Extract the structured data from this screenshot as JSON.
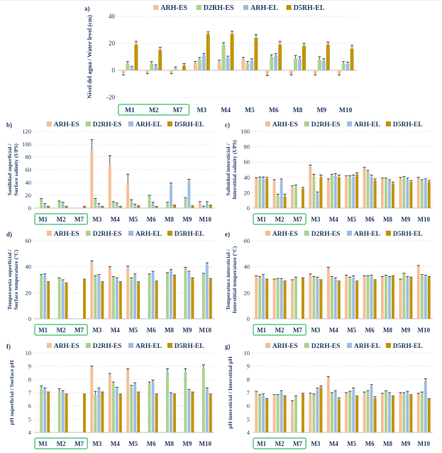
{
  "figure": {
    "background": "#ffffff"
  },
  "colors": {
    "text": "#1F3864",
    "grid": "#D9D9D9",
    "baseline": "#BFBFBF",
    "error_bar": "#3a3a3a",
    "category_box": "#57C785"
  },
  "series_names": [
    "ARH-ES",
    "D2RH-ES",
    "ARH-EL",
    "D5RH-EL"
  ],
  "series_colors": [
    "#F5BD94",
    "#A9D18E",
    "#9EBBE3",
    "#BF9000"
  ],
  "categories": [
    "M1",
    "M2",
    "M7",
    "M3",
    "M4",
    "M5",
    "M6",
    "M8",
    "M9",
    "M10"
  ],
  "boxed_categories": [
    "M1",
    "M2",
    "M7"
  ],
  "chart_data": [
    {
      "id": "a",
      "type": "bar",
      "panel_label": "a)",
      "ylabel_lines": [
        "Nivel del agua / Water level (cm)"
      ],
      "ylim": [
        -20,
        40
      ],
      "yticks": [
        -20,
        0,
        20,
        40
      ],
      "baseline": 0,
      "categories": [
        "M1",
        "M2",
        "M7",
        "M3",
        "M4",
        "M5",
        "M6",
        "M8",
        "M9",
        "M10"
      ],
      "series": [
        {
          "name": "ARH-ES",
          "values": [
            -2,
            -1,
            -1.5,
            5.5,
            6,
            8,
            -2,
            -2,
            -2,
            -2
          ],
          "errors": [
            1.5,
            1.5,
            1,
            1,
            1.5,
            1.5,
            2,
            1.5,
            1.5,
            1.5
          ]
        },
        {
          "name": "D2RH-ES",
          "values": [
            5,
            5,
            1.5,
            8,
            19,
            5,
            10,
            9,
            8,
            5
          ],
          "errors": [
            1.5,
            1.5,
            1,
            1.5,
            1.5,
            1.5,
            1.5,
            2,
            2,
            1.5
          ]
        },
        {
          "name": "ARH-EL",
          "values": [
            2,
            3,
            null,
            11,
            9,
            7,
            11,
            8,
            7,
            5
          ],
          "errors": [
            1,
            1,
            0,
            1.5,
            1.5,
            1.5,
            1.5,
            2,
            1.5,
            1
          ]
        },
        {
          "name": "D5RH-EL",
          "values": [
            19,
            15,
            3.5,
            27,
            27,
            24,
            19,
            18,
            19,
            16
          ],
          "errors": [
            2.5,
            2,
            1.5,
            1.5,
            2,
            2.5,
            2.5,
            2,
            2,
            2.5
          ]
        }
      ]
    },
    {
      "id": "b",
      "type": "bar",
      "panel_label": "b)",
      "ylabel_lines": [
        "Sanilidad superficial /",
        "Surface salinity (UPS)"
      ],
      "ylim": [
        0,
        120
      ],
      "yticks": [
        0,
        20,
        40,
        60,
        80,
        100,
        120
      ],
      "baseline": 0,
      "categories": [
        "M1",
        "M2",
        "M7",
        "M3",
        "M4",
        "M5",
        "M6",
        "M8",
        "M9",
        "M10"
      ],
      "series": [
        {
          "name": "ARH-ES",
          "values": [
            null,
            null,
            null,
            91,
            67,
            37,
            null,
            null,
            null,
            7
          ],
          "errors": [
            0,
            0,
            0,
            16,
            15,
            16,
            0,
            0,
            0,
            3
          ]
        },
        {
          "name": "D2RH-ES",
          "values": [
            14,
            10,
            null,
            14,
            9,
            11,
            19,
            8,
            14,
            2
          ],
          "errors": [
            1,
            1,
            0,
            1,
            1,
            2,
            1,
            1,
            2,
            1
          ]
        },
        {
          "name": "ARH-EL",
          "values": [
            5,
            6,
            null,
            4,
            6,
            4,
            6,
            35,
            40,
            5
          ],
          "errors": [
            2,
            3,
            0,
            3,
            2,
            2,
            3,
            4,
            5,
            5
          ]
        },
        {
          "name": "D5RH-EL",
          "values": [
            2,
            2,
            2,
            2,
            2,
            3,
            2,
            4,
            3,
            4
          ],
          "errors": [
            0.5,
            0.5,
            0.5,
            0.5,
            0.5,
            0.5,
            0.5,
            0.5,
            0.5,
            0.5
          ]
        }
      ]
    },
    {
      "id": "c",
      "type": "bar",
      "panel_label": "c)",
      "ylabel_lines": [
        "Salinidad intersticial /",
        "Interstitial salinity (UPS)"
      ],
      "ylim": [
        0,
        100
      ],
      "yticks": [
        0,
        20,
        40,
        60,
        80,
        100
      ],
      "baseline": 0,
      "categories": [
        "M1",
        "M2",
        "M7",
        "M3",
        "M4",
        "M5",
        "M6",
        "M8",
        "M9",
        "M10"
      ],
      "series": [
        {
          "name": "ARH-ES",
          "values": [
            38,
            35,
            27,
            54,
            35,
            40,
            51,
            37,
            38,
            38
          ],
          "errors": [
            1.5,
            2,
            2,
            2,
            3,
            2,
            2,
            2,
            2,
            2
          ]
        },
        {
          "name": "D2RH-ES",
          "values": [
            39,
            16,
            28,
            41,
            42,
            40,
            47,
            37,
            39,
            35
          ],
          "errors": [
            1.5,
            2,
            2,
            3,
            2,
            2,
            2,
            2,
            2,
            2
          ]
        },
        {
          "name": "ARH-EL",
          "values": [
            39,
            36,
            null,
            19,
            42,
            41,
            41,
            35,
            37,
            36
          ],
          "errors": [
            1.5,
            2,
            0,
            2,
            3,
            2,
            2,
            2,
            2,
            2
          ]
        },
        {
          "name": "D5RH-EL",
          "values": [
            38,
            15,
            25,
            40,
            40,
            44,
            36,
            32,
            34,
            34
          ],
          "errors": [
            2,
            3,
            2,
            3,
            3,
            2,
            2,
            2,
            2,
            2
          ]
        }
      ]
    },
    {
      "id": "d",
      "type": "bar",
      "panel_label": "d)",
      "ylabel_lines": [
        "Temperaruta superficial /",
        "Surface temperature (°C)"
      ],
      "ylim": [
        0,
        60
      ],
      "yticks": [
        0,
        20,
        40,
        60
      ],
      "baseline": 0,
      "categories": [
        "M1",
        "M2",
        "M7",
        "M3",
        "M4",
        "M5",
        "M6",
        "M8",
        "M9",
        "M10"
      ],
      "series": [
        {
          "name": "ARH-ES",
          "values": [
            null,
            null,
            null,
            43.5,
            38.5,
            39.5,
            null,
            null,
            null,
            null
          ],
          "errors": [
            0,
            0,
            0,
            1,
            1.5,
            1,
            0,
            0,
            0,
            0
          ]
        },
        {
          "name": "D2RH-ES",
          "values": [
            33,
            31,
            null,
            32.5,
            32,
            31,
            33.5,
            35,
            39,
            34.5
          ],
          "errors": [
            1,
            0.5,
            0,
            0.5,
            0.5,
            0.5,
            1,
            0.5,
            0.5,
            0.5
          ]
        },
        {
          "name": "ARH-EL",
          "values": [
            33.5,
            29,
            null,
            33,
            30.5,
            33.5,
            35,
            36.5,
            35.5,
            41.5
          ],
          "errors": [
            1,
            1,
            0,
            1,
            1,
            1,
            1.5,
            1.5,
            1,
            1.5
          ]
        },
        {
          "name": "D5RH-EL",
          "values": [
            28,
            27,
            30,
            28,
            28,
            28,
            28.5,
            33,
            31,
            30.5
          ],
          "errors": [
            0.5,
            0.5,
            0.5,
            0.5,
            0.5,
            0.5,
            0.5,
            0.5,
            0.5,
            0.5
          ]
        }
      ]
    },
    {
      "id": "e",
      "type": "bar",
      "panel_label": "e)",
      "ylabel_lines": [
        "Temperatura intersticial /",
        "Interstitial temperature (°C)"
      ],
      "ylim": [
        0,
        60
      ],
      "yticks": [
        0,
        20,
        40,
        60
      ],
      "baseline": 0,
      "categories": [
        "M1",
        "M2",
        "M7",
        "M3",
        "M4",
        "M5",
        "M6",
        "M8",
        "M9",
        "M10"
      ],
      "series": [
        {
          "name": "ARH-ES",
          "values": [
            32.5,
            30,
            29,
            33.5,
            38.5,
            32.5,
            32.5,
            31.5,
            30,
            40
          ],
          "errors": [
            0.5,
            0.5,
            1,
            1,
            1,
            1,
            0.5,
            1,
            0.5,
            1
          ]
        },
        {
          "name": "D2RH-ES",
          "values": [
            31.5,
            30.5,
            31.5,
            31.5,
            31,
            31,
            32.5,
            33,
            34.5,
            33
          ],
          "errors": [
            1,
            0.5,
            0.5,
            1,
            1.5,
            1,
            0.5,
            0.5,
            0.5,
            1
          ]
        },
        {
          "name": "ARH-EL",
          "values": [
            32.5,
            30,
            null,
            31,
            30.5,
            31.5,
            32.5,
            32,
            31.5,
            32.5
          ],
          "errors": [
            1.5,
            1,
            0,
            1,
            1,
            1.5,
            1,
            0.5,
            1,
            1
          ]
        },
        {
          "name": "D5RH-EL",
          "values": [
            30,
            28.5,
            31,
            29.5,
            28.5,
            28.5,
            29.5,
            32.5,
            31.5,
            32
          ],
          "errors": [
            0.5,
            0.5,
            0.5,
            0.5,
            0.5,
            0.5,
            0.5,
            0.5,
            0.5,
            0.5
          ]
        }
      ]
    },
    {
      "id": "f",
      "type": "bar",
      "panel_label": "f)",
      "ylabel_lines": [
        "pH superficial / Surface pH"
      ],
      "ylim": [
        4,
        10
      ],
      "yticks": [
        4,
        5,
        6,
        7,
        8,
        9,
        10
      ],
      "baseline": 4,
      "categories": [
        "M1",
        "M2",
        "M7",
        "M3",
        "M4",
        "M5",
        "M6",
        "M8",
        "M9",
        "M10"
      ],
      "series": [
        {
          "name": "ARH-ES",
          "values": [
            null,
            null,
            null,
            8.85,
            8.3,
            8.6,
            null,
            null,
            null,
            null
          ],
          "errors": [
            0,
            0,
            0,
            0.15,
            0.15,
            0.2,
            0,
            0,
            0,
            0
          ]
        },
        {
          "name": "D2RH-ES",
          "values": [
            7.3,
            7.05,
            null,
            6.85,
            7.65,
            7.4,
            7.6,
            8.55,
            8.55,
            8.85
          ],
          "errors": [
            0.2,
            0.25,
            0,
            0.25,
            0.15,
            0.15,
            0.2,
            0.25,
            0.25,
            0.25
          ]
        },
        {
          "name": "ARH-EL",
          "values": [
            7.25,
            7.05,
            null,
            7.25,
            7.3,
            7.65,
            7.8,
            6.95,
            7.15,
            7.25
          ],
          "errors": [
            0.1,
            0.1,
            0,
            0.1,
            0.1,
            0.1,
            0.15,
            0.05,
            0.1,
            0.1
          ]
        },
        {
          "name": "D5RH-EL",
          "values": [
            7.0,
            6.85,
            6.85,
            7.0,
            6.85,
            7.0,
            6.85,
            6.85,
            7.0,
            6.85
          ],
          "errors": [
            0.05,
            0.05,
            0.05,
            0.05,
            0.05,
            0.05,
            0.05,
            0.05,
            0.05,
            0.05
          ]
        }
      ]
    },
    {
      "id": "g",
      "type": "bar",
      "panel_label": "g)",
      "ylabel_lines": [
        "pH intersticial / Interstitial pH"
      ],
      "ylim": [
        4,
        10
      ],
      "yticks": [
        4,
        5,
        6,
        7,
        8,
        9,
        10
      ],
      "baseline": 4,
      "categories": [
        "M1",
        "M2",
        "M7",
        "M3",
        "M4",
        "M5",
        "M6",
        "M8",
        "M9",
        "M10"
      ],
      "series": [
        {
          "name": "ARH-ES",
          "values": [
            7.0,
            6.75,
            6.25,
            6.85,
            8.05,
            6.9,
            6.95,
            6.85,
            6.9,
            6.85
          ],
          "errors": [
            0.1,
            0.1,
            0.15,
            0.1,
            0.15,
            0.1,
            0.1,
            0.1,
            0.1,
            0.1
          ]
        },
        {
          "name": "D2RH-ES",
          "values": [
            6.8,
            6.8,
            6.65,
            6.85,
            6.9,
            7.0,
            7.05,
            7.1,
            6.9,
            7.0
          ],
          "errors": [
            0.05,
            0.05,
            0.1,
            0.05,
            0.1,
            0.1,
            0.1,
            0.05,
            0.1,
            0.05
          ]
        },
        {
          "name": "ARH-EL",
          "values": [
            6.75,
            7.0,
            null,
            7.25,
            7.05,
            7.2,
            7.45,
            6.9,
            7.0,
            7.9
          ],
          "errors": [
            0.15,
            0.15,
            0,
            0.1,
            0.1,
            0.15,
            0.15,
            0.1,
            0.1,
            0.15
          ]
        },
        {
          "name": "D5RH-EL",
          "values": [
            6.5,
            6.7,
            6.9,
            7.4,
            6.5,
            6.7,
            6.6,
            6.7,
            6.8,
            6.5
          ],
          "errors": [
            0.05,
            0.05,
            0.05,
            0.1,
            0.1,
            0.05,
            0.1,
            0.05,
            0.05,
            0.05
          ]
        }
      ]
    }
  ]
}
